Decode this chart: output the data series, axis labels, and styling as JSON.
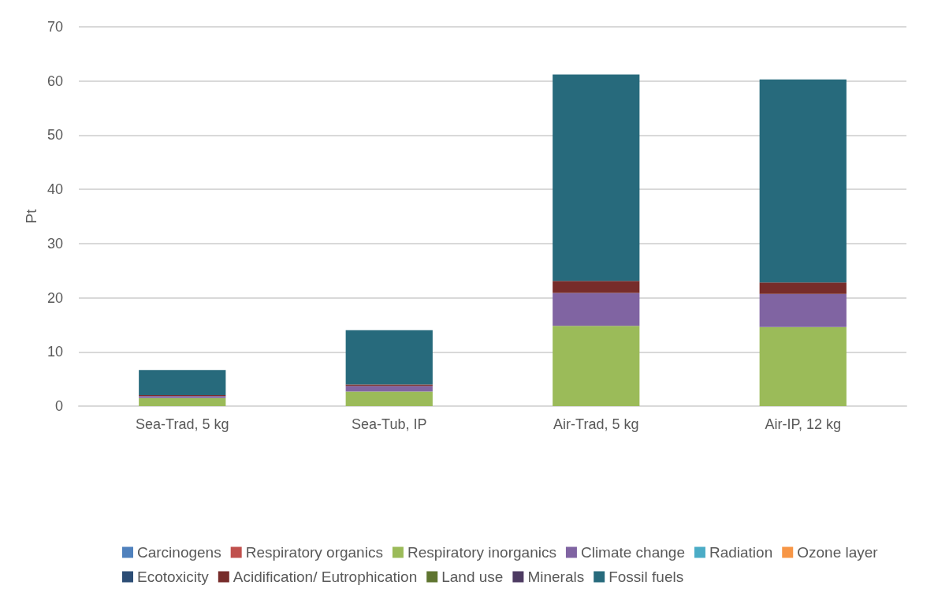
{
  "chart_data": {
    "type": "bar",
    "stacked": true,
    "ylabel": "Pt",
    "categories": [
      "Sea-Trad, 5 kg",
      "Sea-Tub, IP",
      "Air-Trad, 5 kg",
      "Air-IP, 12 kg"
    ],
    "series": [
      {
        "name": "Carcinogens",
        "color": "#4f81bd",
        "values": [
          0,
          0,
          0,
          0
        ]
      },
      {
        "name": "Respiratory organics",
        "color": "#c0504d",
        "values": [
          0,
          0,
          0,
          0
        ]
      },
      {
        "name": "Respiratory inorganics",
        "color": "#9bbb59",
        "values": [
          1.5,
          2.7,
          14.8,
          14.6
        ]
      },
      {
        "name": "Climate change",
        "color": "#8064a2",
        "values": [
          0.35,
          1.0,
          6.1,
          6.1
        ]
      },
      {
        "name": "Radiation",
        "color": "#4bacc6",
        "values": [
          0,
          0,
          0,
          0
        ]
      },
      {
        "name": "Ozone layer",
        "color": "#f79646",
        "values": [
          0,
          0,
          0,
          0
        ]
      },
      {
        "name": "Ecotoxicity",
        "color": "#2c4d75",
        "values": [
          0,
          0,
          0,
          0
        ]
      },
      {
        "name": "Acidification/ Eutrophication",
        "color": "#772c2a",
        "values": [
          0.2,
          0.3,
          2.2,
          2.1
        ]
      },
      {
        "name": "Land use",
        "color": "#5f7530",
        "values": [
          0,
          0,
          0,
          0
        ]
      },
      {
        "name": "Minerals",
        "color": "#4d3b62",
        "values": [
          0,
          0,
          0,
          0
        ]
      },
      {
        "name": "Fossil fuels",
        "color": "#276a7c",
        "values": [
          4.6,
          10.0,
          38.1,
          37.5
        ]
      }
    ],
    "ylim": [
      0,
      70
    ],
    "yticks": [
      0,
      10,
      20,
      30,
      40,
      50,
      60,
      70
    ],
    "grid": "y",
    "legend": "bottom"
  }
}
